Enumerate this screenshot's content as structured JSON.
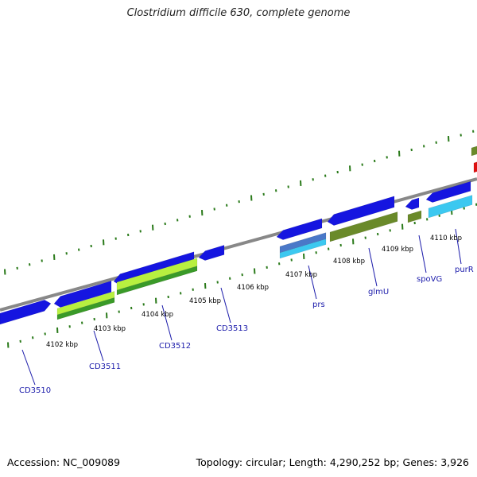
{
  "title": "Clostridium difficile 630, complete genome",
  "footer": {
    "accession": "Accession: NC_009089",
    "summary": "Topology: circular; Length: 4,290,252 bp; Genes: 3,926"
  },
  "colors": {
    "cds_blue": "#1515e0",
    "cds_light_blue": "#3cc8f0",
    "olive": "#6a8a2a",
    "lime": "#b8f040",
    "green": "#3a9a28",
    "red": "#e01010",
    "backbone": "#888888",
    "tick_green": "#2a7a1a",
    "label_blue": "#1a1aaa"
  },
  "kbp_labels": [
    "4102 kbp",
    "4103 kbp",
    "4104 kbp",
    "4105 kbp",
    "4106 kbp",
    "4107 kbp",
    "4108 kbp",
    "4109 kbp",
    "4110 kbp"
  ],
  "gene_labels": [
    "CD3510",
    "CD3511",
    "CD3512",
    "CD3513",
    "prs",
    "glmU",
    "spoVG",
    "purR"
  ]
}
